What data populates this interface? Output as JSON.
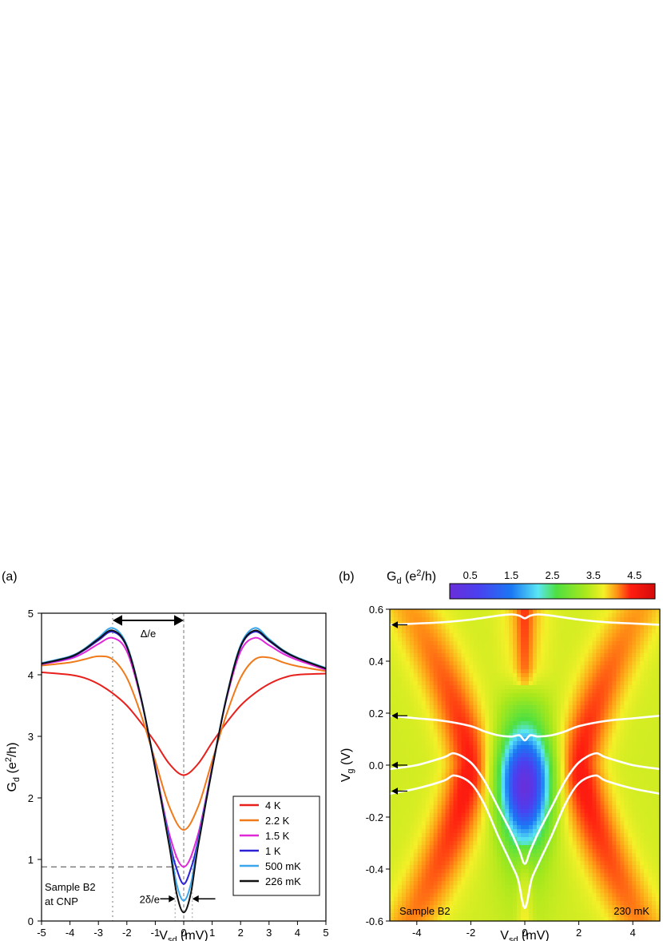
{
  "panel_labels": {
    "a": "(a)",
    "b": "(b)"
  },
  "chart_data": [
    {
      "type": "line",
      "panel": "(a)",
      "xlabel": {
        "main": "V",
        "sub": "sd",
        "tail": " (mV)"
      },
      "ylabel": {
        "main": "G",
        "sub": "d",
        "mid": " (e",
        "sup": "2",
        "tail": "/h)"
      },
      "xlim": [
        -5,
        5
      ],
      "ylim": [
        0,
        5
      ],
      "xticks": [
        -5,
        -4,
        -3,
        -2,
        -1,
        0,
        1,
        2,
        3,
        4,
        5
      ],
      "xtick_labels": [
        "-5",
        "-4",
        "-3",
        "-2",
        "-1",
        "0",
        "1",
        "2",
        "3",
        "4",
        "5"
      ],
      "yticks": [
        0,
        1,
        2,
        3,
        4,
        5
      ],
      "ytick_labels": [
        "0",
        "1",
        "2",
        "3",
        "4",
        "5"
      ],
      "annotations": {
        "gap_label": "Δ/e",
        "minigap_label": "2δ/e",
        "sample_line1": "Sample B2",
        "sample_line2": "at CNP",
        "gap_edge_x": -2.5,
        "minigap_edges_x": [
          -0.3,
          0.3
        ],
        "dashed_level_y": 0.88
      },
      "series": [
        {
          "name": "4 K",
          "color": "#e8201c",
          "x": [
            -5,
            -4,
            -3.5,
            -3,
            -2.5,
            -2,
            -1.5,
            -1,
            -0.5,
            0,
            0.5,
            1,
            1.5,
            2,
            2.5,
            3,
            3.5,
            4,
            5
          ],
          "y": [
            4.04,
            4.0,
            3.95,
            3.85,
            3.7,
            3.5,
            3.22,
            2.9,
            2.55,
            2.37,
            2.55,
            2.9,
            3.22,
            3.5,
            3.7,
            3.85,
            3.95,
            4.0,
            4.02
          ]
        },
        {
          "name": "2.2 K",
          "color": "#f07a1a",
          "x": [
            -5,
            -4,
            -3.5,
            -3,
            -2.5,
            -2,
            -1.5,
            -1,
            -0.5,
            0,
            0.5,
            1,
            1.5,
            2,
            2.5,
            3,
            3.5,
            4,
            5
          ],
          "y": [
            4.15,
            4.2,
            4.25,
            4.3,
            4.25,
            3.95,
            3.35,
            2.6,
            1.85,
            1.48,
            1.85,
            2.6,
            3.35,
            3.95,
            4.25,
            4.28,
            4.2,
            4.14,
            4.06
          ]
        },
        {
          "name": "1.5 K",
          "color": "#e028d8",
          "x": [
            -5,
            -4,
            -3.5,
            -3,
            -2.5,
            -2,
            -1.5,
            -1,
            -0.5,
            0,
            0.5,
            1,
            1.5,
            2,
            2.5,
            3,
            3.5,
            4,
            5
          ],
          "y": [
            4.17,
            4.26,
            4.36,
            4.5,
            4.6,
            4.38,
            3.6,
            2.5,
            1.4,
            0.88,
            1.4,
            2.5,
            3.6,
            4.38,
            4.6,
            4.48,
            4.34,
            4.24,
            4.08
          ]
        },
        {
          "name": "1 K",
          "color": "#2b22d8",
          "x": [
            -5,
            -4,
            -3.5,
            -3,
            -2.5,
            -2,
            -1.5,
            -1,
            -0.5,
            -0.25,
            0,
            0.25,
            0.5,
            1,
            1.5,
            2,
            2.5,
            3,
            3.5,
            4,
            5
          ],
          "y": [
            4.18,
            4.28,
            4.4,
            4.56,
            4.7,
            4.45,
            3.62,
            2.48,
            1.3,
            0.85,
            0.6,
            0.85,
            1.3,
            2.48,
            3.62,
            4.45,
            4.7,
            4.55,
            4.38,
            4.27,
            4.1
          ]
        },
        {
          "name": "500 mK",
          "color": "#3aa6ec",
          "x": [
            -5,
            -4,
            -3.5,
            -3,
            -2.5,
            -2,
            -1.5,
            -1,
            -0.5,
            -0.25,
            0,
            0.25,
            0.5,
            1,
            1.5,
            2,
            2.5,
            3,
            3.5,
            4,
            5
          ],
          "y": [
            4.19,
            4.3,
            4.42,
            4.6,
            4.76,
            4.48,
            3.63,
            2.47,
            1.25,
            0.6,
            0.33,
            0.6,
            1.25,
            2.47,
            3.63,
            4.48,
            4.76,
            4.58,
            4.4,
            4.28,
            4.11
          ]
        },
        {
          "name": "226 mK",
          "color": "#111111",
          "x": [
            -5,
            -4,
            -3.5,
            -3,
            -2.5,
            -2,
            -1.5,
            -1,
            -0.5,
            -0.25,
            0,
            0.25,
            0.5,
            1,
            1.5,
            2,
            2.5,
            3,
            3.5,
            4,
            5
          ],
          "y": [
            4.18,
            4.29,
            4.41,
            4.58,
            4.72,
            4.46,
            3.62,
            2.47,
            1.2,
            0.45,
            0.14,
            0.45,
            1.2,
            2.47,
            3.62,
            4.46,
            4.72,
            4.56,
            4.39,
            4.27,
            4.1
          ]
        }
      ]
    },
    {
      "type": "heatmap",
      "panel": "(b)",
      "xlabel": {
        "main": "V",
        "sub": "sd",
        "tail": " (mV)"
      },
      "ylabel": {
        "main": "V",
        "sub": "g",
        "tail": " (V)"
      },
      "xlim": [
        -5,
        5
      ],
      "ylim": [
        -0.6,
        0.6
      ],
      "xticks": [
        -4,
        -2,
        0,
        2,
        4
      ],
      "xtick_labels": [
        "-4",
        "-2",
        "0",
        "2",
        "4"
      ],
      "yticks": [
        -0.6,
        -0.4,
        -0.2,
        0.0,
        0.2,
        0.4,
        0.6
      ],
      "ytick_labels": [
        "-0.6",
        "-0.4",
        "-0.2",
        "0.0",
        "0.2",
        "0.4",
        "0.6"
      ],
      "colorbar": {
        "label": {
          "main": "G",
          "sub": "d",
          "mid": " (e",
          "sup": "2",
          "tail": "/h)"
        },
        "range": [
          0.0,
          5.0
        ],
        "ticks": [
          0.5,
          1.5,
          2.5,
          3.5,
          4.5
        ],
        "tick_labels": [
          "0.5",
          "1.5",
          "2.5",
          "3.5",
          "4.5"
        ],
        "stops": [
          {
            "v": 0.0,
            "color": "#6a2ed8"
          },
          {
            "v": 0.7,
            "color": "#4a40f0"
          },
          {
            "v": 1.5,
            "color": "#1a78f4"
          },
          {
            "v": 2.15,
            "color": "#5ae6f4"
          },
          {
            "v": 2.6,
            "color": "#4ee040"
          },
          {
            "v": 3.3,
            "color": "#a8e81c"
          },
          {
            "v": 3.75,
            "color": "#f4f028"
          },
          {
            "v": 4.05,
            "color": "#ff9a16"
          },
          {
            "v": 4.4,
            "color": "#ff1e10"
          },
          {
            "v": 5.0,
            "color": "#d40a0a"
          }
        ]
      },
      "arrow_vg": [
        0.54,
        0.19,
        0.0,
        -0.1
      ],
      "annotations": {
        "sample": "Sample B2",
        "temperature": "230 mK"
      },
      "linecut_traces": [
        {
          "vg": 0.54,
          "x": [
            -5,
            -4,
            -3,
            -2,
            -1,
            -0.5,
            -0.2,
            0,
            0.2,
            0.5,
            1,
            2,
            3,
            4,
            5
          ],
          "y": [
            0.54,
            0.545,
            0.55,
            0.56,
            0.575,
            0.58,
            0.575,
            0.565,
            0.575,
            0.58,
            0.575,
            0.56,
            0.55,
            0.545,
            0.54
          ]
        },
        {
          "vg": 0.19,
          "x": [
            -5,
            -4,
            -3,
            -2,
            -1.5,
            -1,
            -0.5,
            -0.2,
            0,
            0.2,
            0.5,
            1,
            1.5,
            2,
            3,
            4,
            5
          ],
          "y": [
            0.19,
            0.18,
            0.17,
            0.15,
            0.13,
            0.115,
            0.11,
            0.115,
            0.095,
            0.115,
            0.11,
            0.115,
            0.13,
            0.15,
            0.17,
            0.18,
            0.19
          ]
        },
        {
          "vg": 0.0,
          "x": [
            -5,
            -4,
            -3,
            -2.6,
            -2,
            -1.5,
            -1,
            -0.5,
            -0.2,
            0,
            0.2,
            0.5,
            1,
            1.5,
            2,
            2.6,
            3,
            4,
            5
          ],
          "y": [
            -0.015,
            0.0,
            0.03,
            0.045,
            0.01,
            -0.06,
            -0.16,
            -0.26,
            -0.33,
            -0.38,
            -0.33,
            -0.26,
            -0.16,
            -0.06,
            0.01,
            0.045,
            0.03,
            0.0,
            -0.015
          ]
        },
        {
          "vg": -0.1,
          "x": [
            -5,
            -4,
            -3,
            -2.6,
            -2,
            -1.5,
            -1,
            -0.5,
            -0.25,
            -0.1,
            0,
            0.1,
            0.25,
            0.5,
            1,
            1.5,
            2,
            2.6,
            3,
            4,
            5
          ],
          "y": [
            -0.11,
            -0.09,
            -0.06,
            -0.04,
            -0.07,
            -0.15,
            -0.27,
            -0.38,
            -0.44,
            -0.52,
            -0.55,
            -0.52,
            -0.44,
            -0.38,
            -0.27,
            -0.15,
            -0.07,
            -0.04,
            -0.06,
            -0.09,
            -0.11
          ]
        }
      ]
    }
  ]
}
